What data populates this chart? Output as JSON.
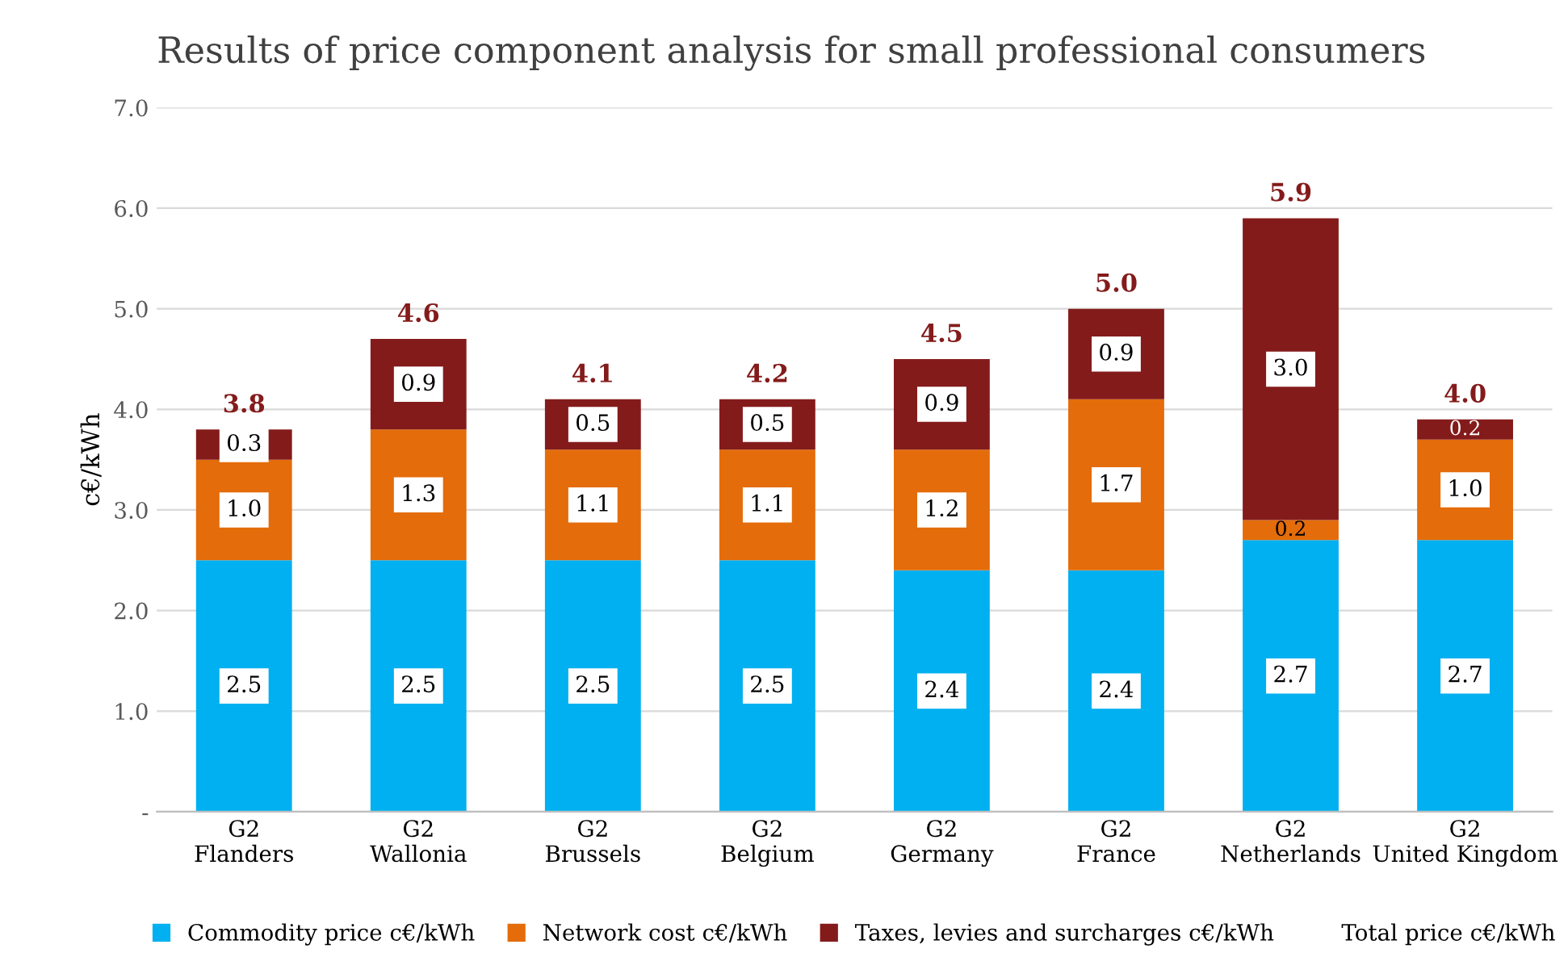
{
  "chart_data": {
    "type": "bar",
    "stacked": true,
    "title": "Results of price component analysis for small professional consumers",
    "ylabel": "c€/kWh",
    "categories": [
      "G2\nFlanders",
      "G2\nWallonia",
      "G2\nBrussels",
      "G2\nBelgium",
      "G2\nGermany",
      "G2\nFrance",
      "G2\nNetherlands",
      "G2\nUnited Kingdom"
    ],
    "series": [
      {
        "name": "Commodity price c€/kWh",
        "color": "#00b0f0",
        "values": [
          2.5,
          2.5,
          2.5,
          2.5,
          2.4,
          2.4,
          2.7,
          2.7
        ],
        "value_labels": [
          "2.5",
          "2.5",
          "2.5",
          "2.5",
          "2.4",
          "2.4",
          "2.7",
          "2.7"
        ]
      },
      {
        "name": "Network cost c€/kWh",
        "color": "#e46c0a",
        "values": [
          1.0,
          1.3,
          1.1,
          1.1,
          1.2,
          1.7,
          0.2,
          1.0
        ],
        "value_labels": [
          "1.0",
          "1.3",
          "1.1",
          "1.1",
          "1.2",
          "1.7",
          "0.2",
          "1.0"
        ]
      },
      {
        "name": "Taxes, levies and surcharges c€/kWh",
        "color": "#841b1b",
        "values": [
          0.3,
          0.9,
          0.5,
          0.5,
          0.9,
          0.9,
          3.0,
          0.2
        ],
        "value_labels": [
          "0.3",
          "0.9",
          "0.5",
          "0.5",
          "0.9",
          "0.9",
          "3.0",
          "0.2"
        ]
      }
    ],
    "totals": [
      "3.8",
      "4.6",
      "4.1",
      "4.2",
      "4.5",
      "5.0",
      "5.9",
      "4.0"
    ],
    "annotations": [
      "Total price c€/kWh"
    ],
    "legend": "bottom",
    "grid": "y",
    "ylim": [
      0,
      7
    ],
    "yticks": [
      {
        "value": 0,
        "label": "-"
      },
      {
        "value": 1,
        "label": "1.0"
      },
      {
        "value": 2,
        "label": "2.0"
      },
      {
        "value": 3,
        "label": "3.0"
      },
      {
        "value": 4,
        "label": "4.0"
      },
      {
        "value": 5,
        "label": "5.0"
      },
      {
        "value": 6,
        "label": "6.0"
      },
      {
        "value": 7,
        "label": "7.0"
      }
    ]
  }
}
